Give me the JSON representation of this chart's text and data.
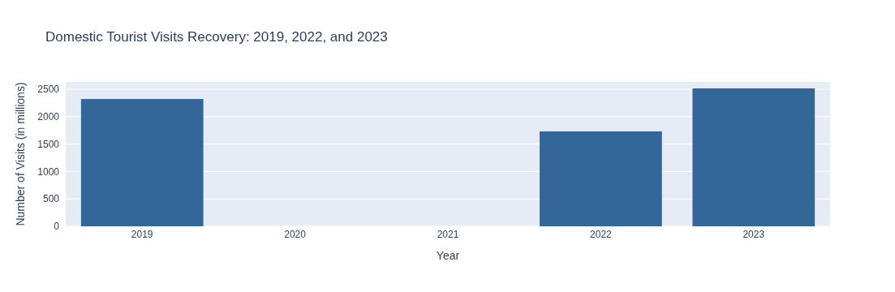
{
  "chart_data": {
    "type": "bar",
    "title": "Domestic Tourist Visits Recovery: 2019, 2022, and 2023",
    "xlabel": "Year",
    "ylabel": "Number of Visits (in millions)",
    "x": [
      2019,
      2022,
      2023
    ],
    "values": [
      2322,
      1731,
      2515
    ],
    "color": "#336699",
    "xlim": [
      2018.5,
      2023.5
    ],
    "xticks": [
      2019,
      2020,
      2021,
      2022,
      2023
    ],
    "ylim": [
      0,
      2633
    ],
    "yticks": [
      0,
      500,
      1000,
      1500,
      2000,
      2500
    ],
    "grid": "y"
  }
}
